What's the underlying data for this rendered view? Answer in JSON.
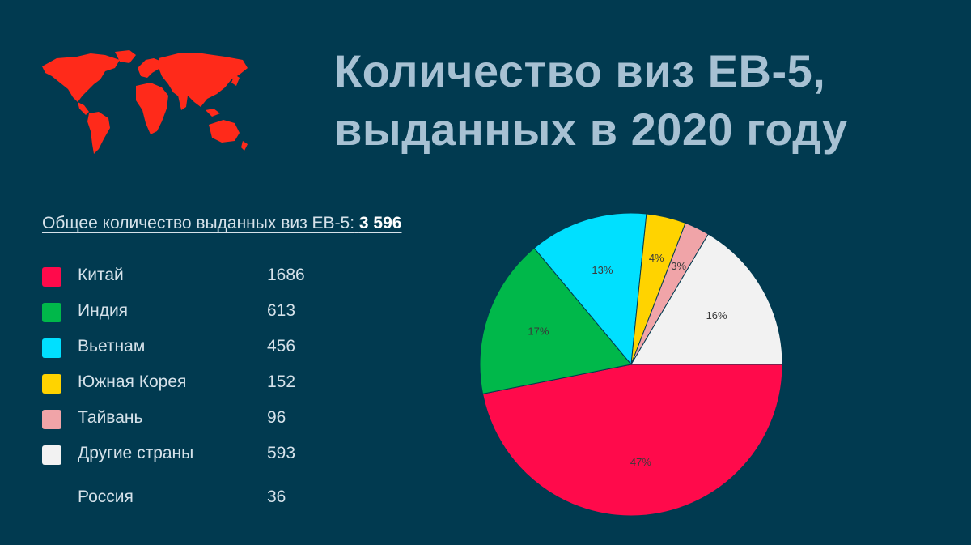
{
  "title": "Количество виз ЕВ-5, выданных в 2020 году",
  "total": {
    "label": "Общее количество выданных виз ЕВ-5:",
    "value": "3 596"
  },
  "legend": [
    {
      "label": "Китай",
      "value": "1686",
      "color": "#ff0a4b"
    },
    {
      "label": "Индия",
      "value": "613",
      "color": "#00b84a"
    },
    {
      "label": "Вьетнам",
      "value": "456",
      "color": "#00e0ff"
    },
    {
      "label": "Южная Корея",
      "value": "152",
      "color": "#ffd300"
    },
    {
      "label": "Тайвань",
      "value": "96",
      "color": "#f0a4a8"
    },
    {
      "label": "Другие страны",
      "value": "593",
      "color": "#f2f2f2"
    }
  ],
  "extra_row": {
    "label": "Россия",
    "value": "36"
  },
  "chart_data": {
    "type": "pie",
    "categories": [
      "Китай",
      "Индия",
      "Вьетнам",
      "Южная Корея",
      "Тайвань",
      "Другие страны"
    ],
    "values": [
      1686,
      613,
      456,
      152,
      96,
      593
    ],
    "slice_labels": [
      "47%",
      "17%",
      "13%",
      "4%",
      "3%",
      "16%"
    ],
    "colors": [
      "#ff0a4b",
      "#00b84a",
      "#00e0ff",
      "#ffd300",
      "#f0a4a8",
      "#f2f2f2"
    ]
  },
  "colors": {
    "background": "#013a50",
    "title": "#a7c1d3",
    "map": "#ff2a1a"
  }
}
